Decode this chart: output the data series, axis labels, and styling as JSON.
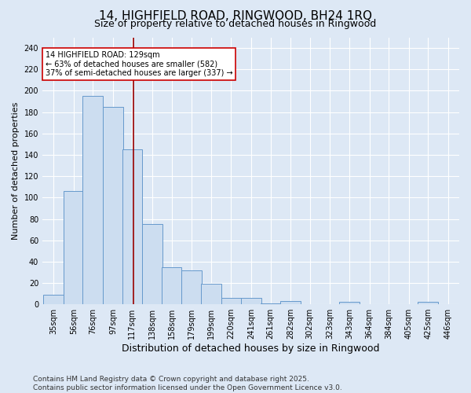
{
  "title": "14, HIGHFIELD ROAD, RINGWOOD, BH24 1RQ",
  "subtitle": "Size of property relative to detached houses in Ringwood",
  "xlabel": "Distribution of detached houses by size in Ringwood",
  "ylabel": "Number of detached properties",
  "bins": [
    35,
    56,
    76,
    97,
    117,
    138,
    158,
    179,
    199,
    220,
    241,
    261,
    282,
    302,
    323,
    343,
    364,
    384,
    405,
    425,
    446
  ],
  "counts": [
    9,
    106,
    195,
    185,
    145,
    75,
    35,
    32,
    19,
    6,
    6,
    1,
    3,
    0,
    0,
    2,
    0,
    0,
    0,
    2,
    0
  ],
  "bar_color": "#ccddf0",
  "bar_edge_color": "#6699cc",
  "vline_x": 129,
  "vline_color": "#990000",
  "annotation_text": "14 HIGHFIELD ROAD: 129sqm\n← 63% of detached houses are smaller (582)\n37% of semi-detached houses are larger (337) →",
  "annotation_box_facecolor": "#ffffff",
  "annotation_box_edgecolor": "#cc0000",
  "annotation_fontsize": 7,
  "background_color": "#dde8f5",
  "plot_background_color": "#dde8f5",
  "footer_text": "Contains HM Land Registry data © Crown copyright and database right 2025.\nContains public sector information licensed under the Open Government Licence v3.0.",
  "ylim": [
    0,
    250
  ],
  "yticks": [
    0,
    20,
    40,
    60,
    80,
    100,
    120,
    140,
    160,
    180,
    200,
    220,
    240
  ],
  "title_fontsize": 11,
  "subtitle_fontsize": 9,
  "xlabel_fontsize": 9,
  "ylabel_fontsize": 8,
  "tick_fontsize": 7,
  "footer_fontsize": 6.5,
  "grid_color": "#ffffff",
  "bin_width": 21
}
